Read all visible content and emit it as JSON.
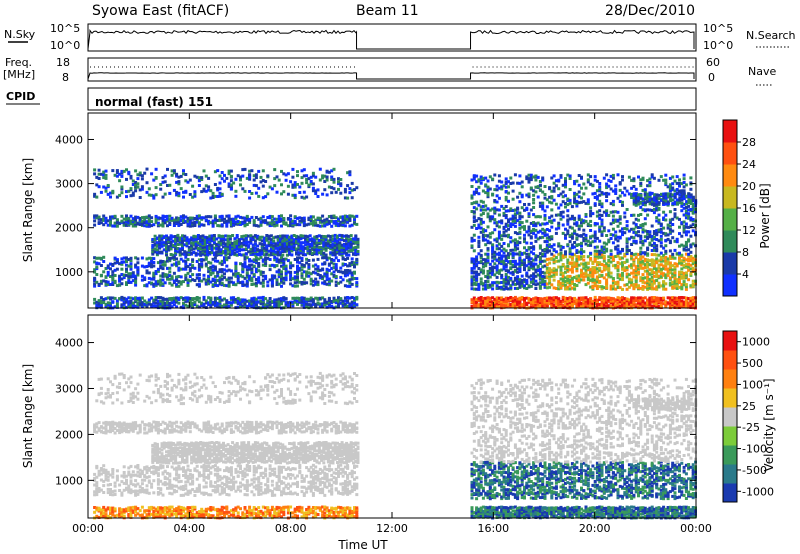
{
  "header": {
    "station": "Syowa East (fitACF)",
    "beam": "Beam 11",
    "date": "28/Dec/2010"
  },
  "top_panels": {
    "nsky_label": "N.Sky",
    "nsky_ticks": [
      "10^5",
      "10^0"
    ],
    "nsearch_label": "N.Search",
    "nsearch_ticks": [
      "10^5",
      "10^0"
    ],
    "freq_label_1": "Freq.",
    "freq_label_2": "[MHz]",
    "freq_ticks": [
      "18",
      "8"
    ],
    "nave_label": "Nave",
    "nave_ticks": [
      "60",
      "0"
    ],
    "cpid_label": "CPID",
    "cpid_text": "normal (fast) 151"
  },
  "chart_data": [
    {
      "type": "heatmap",
      "name": "power",
      "ylabel": "Slant Range [km]",
      "xlabel": "Time UT",
      "ylim": [
        180,
        4600
      ],
      "yticks": [
        1000,
        2000,
        3000,
        4000
      ],
      "xticks": [
        "00:00",
        "04:00",
        "08:00",
        "12:00",
        "16:00",
        "20:00",
        "00:00"
      ],
      "xlim_hours": [
        0,
        24
      ],
      "data_gaps_hours": [
        [
          10.6,
          15.1
        ]
      ],
      "colorbar_label": "Power [dB]",
      "colorbar_ticks": [
        "4",
        "8",
        "12",
        "16",
        "20",
        "24",
        "28"
      ],
      "colorbar_colors": [
        "#1030ff",
        "#1a3aa8",
        "#2f8a5a",
        "#55b047",
        "#c8b820",
        "#ff8a10",
        "#ff5010",
        "#e81010"
      ]
    },
    {
      "type": "heatmap",
      "name": "velocity",
      "ylabel": "Slant Range [km]",
      "xlabel": "Time UT",
      "ylim": [
        180,
        4600
      ],
      "yticks": [
        1000,
        2000,
        3000,
        4000
      ],
      "xticks": [
        "00:00",
        "04:00",
        "08:00",
        "12:00",
        "16:00",
        "20:00",
        "00:00"
      ],
      "xlim_hours": [
        0,
        24
      ],
      "data_gaps_hours": [
        [
          10.6,
          15.1
        ]
      ],
      "colorbar_label": "Velocity [m s⁻¹]",
      "colorbar_ticks": [
        "1000",
        "500",
        "100",
        "25",
        "-25",
        "-100",
        "-500",
        "-1000"
      ],
      "colorbar_colors": [
        "#1a3ab0",
        "#2a7a8a",
        "#3a9a5a",
        "#7ccc3a",
        "#c8c8c8",
        "#f0c020",
        "#ff8010",
        "#ff5010",
        "#e81010"
      ]
    }
  ],
  "colors": {
    "frame": "#000000",
    "background": "#ffffff"
  }
}
